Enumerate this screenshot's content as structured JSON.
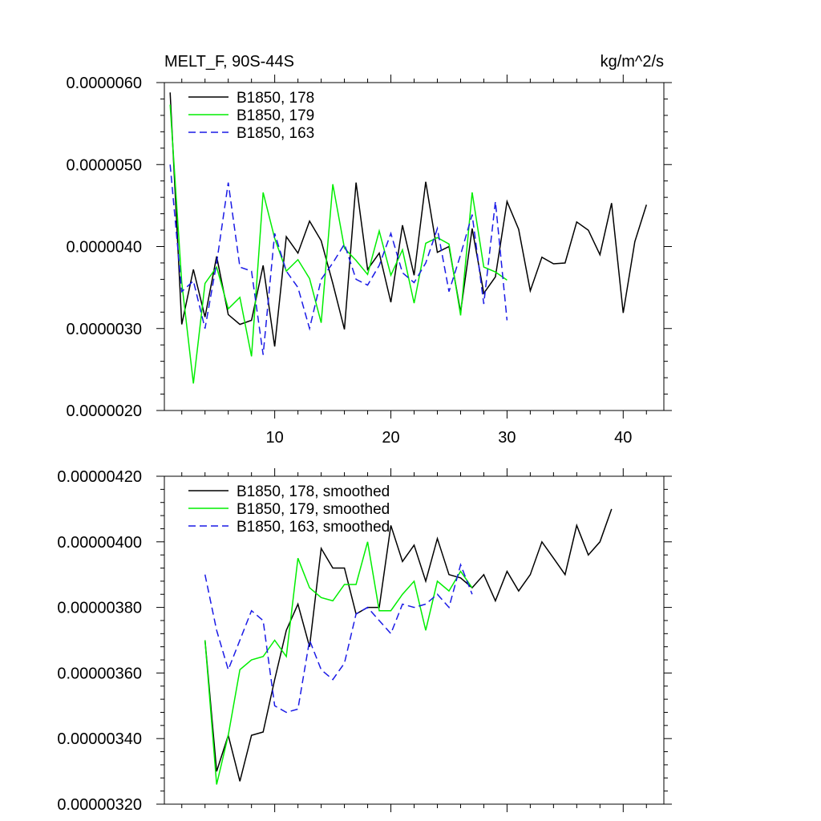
{
  "chart_data": [
    {
      "type": "line",
      "title_left": "MELT_F, 90S-44S",
      "title_right": "kg/m^2/s",
      "xlim": [
        0.5,
        43.5
      ],
      "ylim": [
        2e-06,
        6e-06
      ],
      "xticks": [
        10,
        20,
        30,
        40
      ],
      "xtick_labels": [
        "10",
        "20",
        "30",
        "40"
      ],
      "yticks": [
        2e-06,
        3e-06,
        4e-06,
        5e-06,
        6e-06
      ],
      "ytick_labels": [
        "0.0000020",
        "0.0000030",
        "0.0000040",
        "0.0000050",
        "0.0000060"
      ],
      "legend_position": "top-left",
      "series": [
        {
          "name": "B1850, 178",
          "color": "#000000",
          "dash": "solid",
          "x": [
            1,
            2,
            3,
            4,
            5,
            6,
            7,
            8,
            9,
            10,
            11,
            12,
            13,
            14,
            15,
            16,
            17,
            18,
            19,
            20,
            21,
            22,
            23,
            24,
            25,
            26,
            27,
            28,
            29,
            30,
            31,
            32,
            33,
            34,
            35,
            36,
            37,
            38,
            39,
            40,
            41,
            42
          ],
          "values": [
            5.88e-06,
            3.05e-06,
            3.72e-06,
            3.14e-06,
            3.88e-06,
            3.17e-06,
            3.05e-06,
            3.1e-06,
            3.77e-06,
            2.78e-06,
            4.12e-06,
            3.92e-06,
            4.31e-06,
            4.07e-06,
            3.55e-06,
            2.99e-06,
            4.78e-06,
            3.72e-06,
            3.92e-06,
            3.32e-06,
            4.26e-06,
            3.65e-06,
            4.79e-06,
            3.93e-06,
            4e-06,
            3.2e-06,
            4.22e-06,
            3.43e-06,
            3.63e-06,
            4.55e-06,
            4.21e-06,
            3.46e-06,
            3.87e-06,
            3.79e-06,
            3.8e-06,
            4.3e-06,
            4.2e-06,
            3.9e-06,
            4.53e-06,
            3.19e-06,
            4.06e-06,
            4.51e-06
          ]
        },
        {
          "name": "B1850, 179",
          "color": "#00ee00",
          "dash": "solid",
          "x": [
            1,
            2,
            3,
            4,
            5,
            6,
            7,
            8,
            9,
            10,
            11,
            12,
            13,
            14,
            15,
            16,
            17,
            18,
            19,
            20,
            21,
            22,
            23,
            24,
            25,
            26,
            27,
            28,
            29,
            30
          ],
          "values": [
            5.73e-06,
            3.56e-06,
            2.33e-06,
            3.55e-06,
            3.75e-06,
            3.24e-06,
            3.38e-06,
            2.66e-06,
            4.66e-06,
            4.1e-06,
            3.7e-06,
            3.84e-06,
            3.61e-06,
            3.07e-06,
            4.76e-06,
            3.98e-06,
            3.83e-06,
            3.66e-06,
            4.19e-06,
            3.65e-06,
            3.96e-06,
            3.31e-06,
            4.04e-06,
            4.11e-06,
            4.03e-06,
            3.16e-06,
            4.66e-06,
            3.75e-06,
            3.69e-06,
            3.59e-06
          ]
        },
        {
          "name": "B1850, 163",
          "color": "#1a1ae6",
          "dash": "dashed",
          "x": [
            1,
            2,
            3,
            4,
            5,
            6,
            7,
            8,
            9,
            10,
            11,
            12,
            13,
            14,
            15,
            16,
            17,
            18,
            19,
            20,
            21,
            22,
            23,
            24,
            25,
            26,
            27,
            28,
            29,
            30
          ],
          "values": [
            5e-06,
            3.45e-06,
            3.58e-06,
            3e-06,
            3.8e-06,
            4.78e-06,
            3.75e-06,
            3.7e-06,
            2.68e-06,
            4.16e-06,
            3.7e-06,
            3.5e-06,
            3e-06,
            3.6e-06,
            3.8e-06,
            4.03e-06,
            3.6e-06,
            3.53e-06,
            3.77e-06,
            4.16e-06,
            3.68e-06,
            3.56e-06,
            3.8e-06,
            4.22e-06,
            3.45e-06,
            3.9e-06,
            4.39e-06,
            3.3e-06,
            4.55e-06,
            3.1e-06
          ]
        }
      ]
    },
    {
      "type": "line",
      "xlim": [
        0.5,
        43.5
      ],
      "ylim": [
        3.2e-06,
        4.2e-06
      ],
      "xticks": [
        10,
        20,
        30,
        40
      ],
      "yticks": [
        3.2e-06,
        3.4e-06,
        3.6e-06,
        3.8e-06,
        4e-06,
        4.2e-06
      ],
      "ytick_labels": [
        "0.00000320",
        "0.00000340",
        "0.00000360",
        "0.00000380",
        "0.00000400",
        "0.00000420"
      ],
      "legend_position": "top-left",
      "series": [
        {
          "name": "B1850, 178, smoothed",
          "color": "#000000",
          "dash": "solid",
          "x": [
            4,
            5,
            6,
            7,
            8,
            9,
            10,
            11,
            12,
            13,
            14,
            15,
            16,
            17,
            18,
            19,
            20,
            21,
            22,
            23,
            24,
            25,
            26,
            27,
            28,
            29,
            30,
            31,
            32,
            33,
            34,
            35,
            36,
            37,
            38,
            39
          ],
          "values": [
            3.7e-06,
            3.3e-06,
            3.41e-06,
            3.27e-06,
            3.41e-06,
            3.42e-06,
            3.58e-06,
            3.73e-06,
            3.81e-06,
            3.68e-06,
            3.98e-06,
            3.92e-06,
            3.92e-06,
            3.78e-06,
            3.8e-06,
            3.8e-06,
            4.05e-06,
            3.94e-06,
            3.99e-06,
            3.88e-06,
            4.01e-06,
            3.9e-06,
            3.89e-06,
            3.86e-06,
            3.9e-06,
            3.82e-06,
            3.91e-06,
            3.85e-06,
            3.9e-06,
            4e-06,
            3.95e-06,
            3.9e-06,
            4.05e-06,
            3.96e-06,
            4e-06,
            4.1e-06
          ]
        },
        {
          "name": "B1850, 179, smoothed",
          "color": "#00ee00",
          "dash": "solid",
          "x": [
            4,
            5,
            6,
            7,
            8,
            9,
            10,
            11,
            12,
            13,
            14,
            15,
            16,
            17,
            18,
            19,
            20,
            21,
            22,
            23,
            24,
            25,
            26,
            27
          ],
          "values": [
            3.7e-06,
            3.26e-06,
            3.41e-06,
            3.61e-06,
            3.64e-06,
            3.65e-06,
            3.7e-06,
            3.65e-06,
            3.95e-06,
            3.86e-06,
            3.83e-06,
            3.82e-06,
            3.87e-06,
            3.87e-06,
            4e-06,
            3.79e-06,
            3.79e-06,
            3.84e-06,
            3.88e-06,
            3.73e-06,
            3.88e-06,
            3.85e-06,
            3.91e-06,
            3.86e-06
          ]
        },
        {
          "name": "B1850, 163, smoothed",
          "color": "#1a1ae6",
          "dash": "dashed",
          "x": [
            4,
            5,
            6,
            7,
            8,
            9,
            10,
            11,
            12,
            13,
            14,
            15,
            16,
            17,
            18,
            19,
            20,
            21,
            22,
            23,
            24,
            25,
            26,
            27
          ],
          "values": [
            3.9e-06,
            3.73e-06,
            3.61e-06,
            3.7e-06,
            3.79e-06,
            3.76e-06,
            3.5e-06,
            3.48e-06,
            3.49e-06,
            3.7e-06,
            3.61e-06,
            3.58e-06,
            3.63e-06,
            3.78e-06,
            3.8e-06,
            3.76e-06,
            3.72e-06,
            3.81e-06,
            3.8e-06,
            3.81e-06,
            3.84e-06,
            3.8e-06,
            3.93e-06,
            3.84e-06
          ]
        }
      ]
    }
  ]
}
